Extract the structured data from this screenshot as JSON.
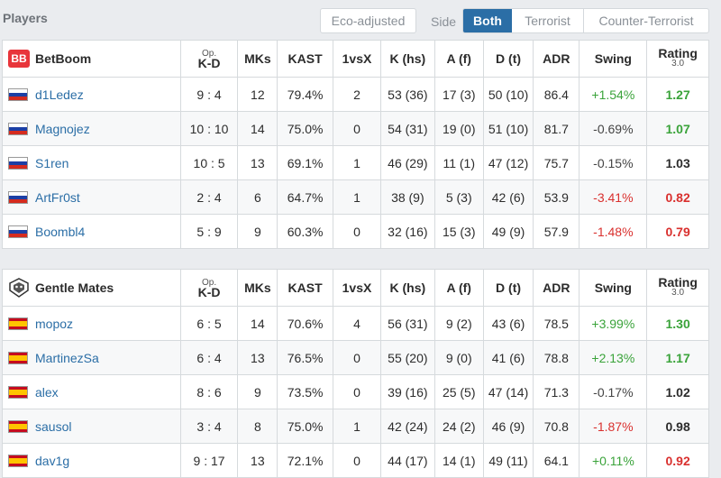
{
  "header": {
    "title": "Players",
    "eco_adjusted": "Eco-adjusted",
    "side_label": "Side",
    "sides": [
      "Both",
      "Terrorist",
      "Counter-Terrorist"
    ]
  },
  "columns": {
    "op": "Op.",
    "kd": "K-D",
    "mks": "MKs",
    "kast": "KAST",
    "vsx": "1vsX",
    "khs": "K (hs)",
    "af": "A (f)",
    "dt": "D (t)",
    "adr": "ADR",
    "swing": "Swing",
    "rating": "Rating",
    "rating_ver": "3.0"
  },
  "teams": [
    {
      "name": "BetBoom",
      "logo_icon": "betboom-logo-icon",
      "players": [
        {
          "name": "d1Ledez",
          "flag": "ru",
          "kd": "9 : 4",
          "mks": "12",
          "kast": "79.4%",
          "vsx": "2",
          "khs": "53 (36)",
          "af": "17 (3)",
          "dt": "50 (10)",
          "adr": "86.4",
          "swing": "+1.54%",
          "rating": "1.27"
        },
        {
          "name": "Magnojez",
          "flag": "ru",
          "kd": "10 : 10",
          "mks": "14",
          "kast": "75.0%",
          "vsx": "0",
          "khs": "54 (31)",
          "af": "19 (0)",
          "dt": "51 (10)",
          "adr": "81.7",
          "swing": "-0.69%",
          "rating": "1.07"
        },
        {
          "name": "S1ren",
          "flag": "ru",
          "kd": "10 : 5",
          "mks": "13",
          "kast": "69.1%",
          "vsx": "1",
          "khs": "46 (29)",
          "af": "11 (1)",
          "dt": "47 (12)",
          "adr": "75.7",
          "swing": "-0.15%",
          "rating": "1.03"
        },
        {
          "name": "ArtFr0st",
          "flag": "ru",
          "kd": "2 : 4",
          "mks": "6",
          "kast": "64.7%",
          "vsx": "1",
          "khs": "38 (9)",
          "af": "5 (3)",
          "dt": "42 (6)",
          "adr": "53.9",
          "swing": "-3.41%",
          "rating": "0.82"
        },
        {
          "name": "Boombl4",
          "flag": "ru",
          "kd": "5 : 9",
          "mks": "9",
          "kast": "60.3%",
          "vsx": "0",
          "khs": "32 (16)",
          "af": "15 (3)",
          "dt": "49 (9)",
          "adr": "57.9",
          "swing": "-1.48%",
          "rating": "0.79"
        }
      ]
    },
    {
      "name": "Gentle Mates",
      "logo_icon": "gentle-mates-logo-icon",
      "players": [
        {
          "name": "mopoz",
          "flag": "es",
          "kd": "6 : 5",
          "mks": "14",
          "kast": "70.6%",
          "vsx": "4",
          "khs": "56 (31)",
          "af": "9 (2)",
          "dt": "43 (6)",
          "adr": "78.5",
          "swing": "+3.99%",
          "rating": "1.30"
        },
        {
          "name": "MartinezSa",
          "flag": "es",
          "kd": "6 : 4",
          "mks": "13",
          "kast": "76.5%",
          "vsx": "0",
          "khs": "55 (20)",
          "af": "9 (0)",
          "dt": "41 (6)",
          "adr": "78.8",
          "swing": "+2.13%",
          "rating": "1.17"
        },
        {
          "name": "alex",
          "flag": "es",
          "kd": "8 : 6",
          "mks": "9",
          "kast": "73.5%",
          "vsx": "0",
          "khs": "39 (16)",
          "af": "25 (5)",
          "dt": "47 (14)",
          "adr": "71.3",
          "swing": "-0.17%",
          "rating": "1.02"
        },
        {
          "name": "sausol",
          "flag": "es",
          "kd": "3 : 4",
          "mks": "8",
          "kast": "75.0%",
          "vsx": "1",
          "khs": "42 (24)",
          "af": "24 (2)",
          "dt": "46 (9)",
          "adr": "70.8",
          "swing": "-1.87%",
          "rating": "0.98"
        },
        {
          "name": "dav1g",
          "flag": "es",
          "kd": "9 : 17",
          "mks": "13",
          "kast": "72.1%",
          "vsx": "0",
          "khs": "44 (17)",
          "af": "14 (1)",
          "dt": "49 (11)",
          "adr": "64.1",
          "swing": "+0.11%",
          "rating": "0.92"
        }
      ]
    }
  ],
  "colors": {
    "accent": "#2b6ea6",
    "positive": "#3aa33a",
    "negative": "#d9302e"
  }
}
